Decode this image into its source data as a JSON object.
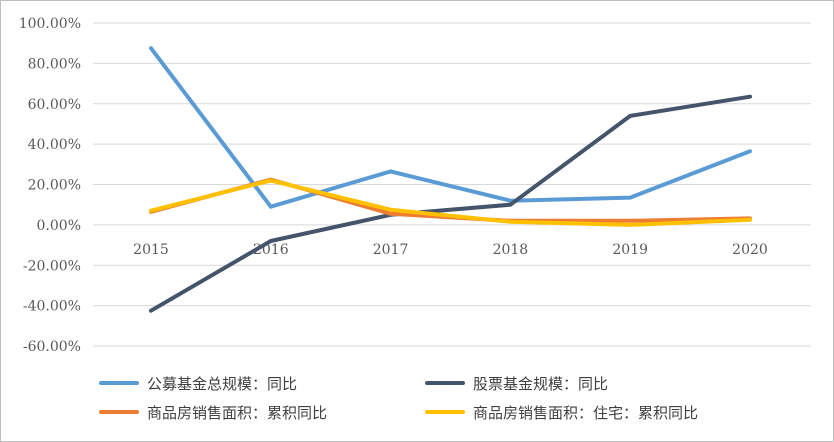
{
  "chart_data": {
    "type": "line",
    "categories": [
      "2015",
      "2016",
      "2017",
      "2018",
      "2019",
      "2020"
    ],
    "ylim": [
      -60,
      100
    ],
    "yticks": [
      -60,
      -40,
      -20,
      0,
      20,
      40,
      60,
      80,
      100
    ],
    "ytick_labels": [
      "-60.00%",
      "-40.00%",
      "-20.00%",
      "0.00%",
      "20.00%",
      "40.00%",
      "60.00%",
      "80.00%",
      "100.00%"
    ],
    "grid": true,
    "legend_position": "bottom",
    "series": [
      {
        "name": "公募基金总规模：同比",
        "color": "#5b9bd5",
        "values": [
          87.5,
          9,
          26.5,
          12,
          13.5,
          36.5
        ]
      },
      {
        "name": "股票基金规模：同比",
        "color": "#44546a",
        "values": [
          -42.5,
          -8,
          5,
          10,
          54,
          63.5
        ]
      },
      {
        "name": "商品房销售面积：累积同比",
        "color": "#ed7d31",
        "values": [
          6.5,
          22.5,
          5.5,
          2,
          2,
          3.2
        ]
      },
      {
        "name": "商品房销售面积：住宅：累积同比",
        "color": "#ffc000",
        "values": [
          7,
          22,
          7.5,
          1.5,
          0,
          2.5
        ]
      }
    ]
  }
}
